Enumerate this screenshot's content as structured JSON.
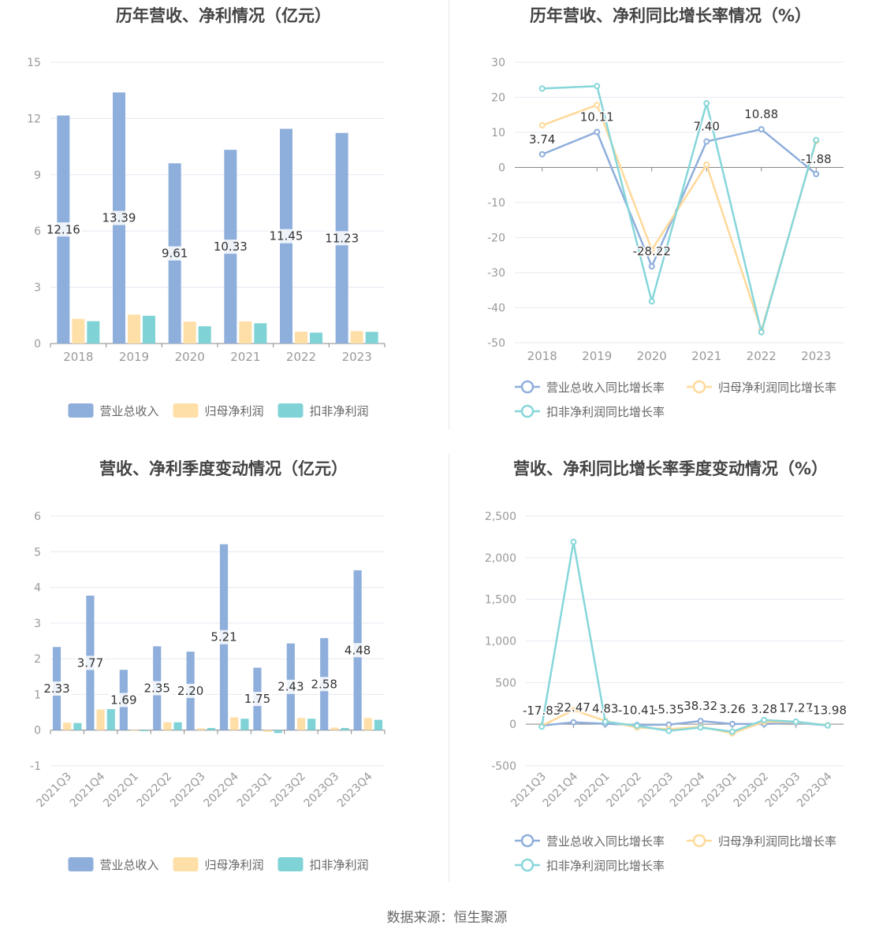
{
  "source": "数据来源：恒生聚源",
  "colors": {
    "revenue": "#8eaedb",
    "net_profit": "#ffdfa8",
    "deducted_profit": "#7fd3d6",
    "revenue_line": "#8eaedb",
    "net_line": "#ffd99a",
    "deducted_line": "#86d6da",
    "axis_text": "#999999",
    "grid": "#e6e9f2"
  },
  "chart_data": [
    {
      "id": "annual_bar",
      "type": "bar",
      "title": "历年营收、净利情况（亿元）",
      "categories": [
        "2018",
        "2019",
        "2020",
        "2021",
        "2022",
        "2023"
      ],
      "ylim": [
        0,
        15
      ],
      "yticks": [
        0,
        3,
        6,
        9,
        12,
        15
      ],
      "ytick_labels": [
        "0",
        "3",
        "6",
        "9",
        "12",
        "15"
      ],
      "series": [
        {
          "name": "营业总收入",
          "values": [
            12.16,
            13.39,
            9.61,
            10.33,
            11.45,
            11.23
          ],
          "labels": [
            "12.16",
            "13.39",
            "9.61",
            "10.33",
            "11.45",
            "11.23"
          ]
        },
        {
          "name": "归母净利润",
          "values": [
            1.32,
            1.54,
            1.17,
            1.18,
            0.63,
            0.66
          ]
        },
        {
          "name": "扣非净利润",
          "values": [
            1.19,
            1.48,
            0.92,
            1.08,
            0.58,
            0.62
          ]
        }
      ],
      "grid": true,
      "legend": "bottom"
    },
    {
      "id": "annual_growth",
      "type": "line",
      "title": "历年营收、净利同比增长率情况（%）",
      "categories": [
        "2018",
        "2019",
        "2020",
        "2021",
        "2022",
        "2023"
      ],
      "ylim": [
        -50,
        30
      ],
      "yticks": [
        -50,
        -40,
        -30,
        -20,
        -10,
        0,
        10,
        20,
        30
      ],
      "ytick_labels": [
        "-50",
        "-40",
        "-30",
        "-20",
        "-10",
        "0",
        "10",
        "20",
        "30"
      ],
      "series": [
        {
          "name": "营业总收入同比增长率",
          "values": [
            3.74,
            10.11,
            -28.22,
            7.4,
            10.88,
            -1.88
          ],
          "labels": [
            "3.74",
            "10.11",
            "-28.22",
            "7.40",
            "10.88",
            "-1.88"
          ]
        },
        {
          "name": "归母净利润同比增长率",
          "values": [
            12.0,
            17.8,
            -23.5,
            0.8,
            -46.5,
            7.5
          ]
        },
        {
          "name": "扣非净利润同比增长率",
          "values": [
            22.5,
            23.2,
            -38.2,
            18.3,
            -47.0,
            7.8
          ]
        }
      ],
      "grid": true,
      "legend": "bottom"
    },
    {
      "id": "quarterly_bar",
      "type": "bar",
      "title": "营收、净利季度变动情况（亿元）",
      "categories": [
        "2021Q3",
        "2021Q4",
        "2022Q1",
        "2022Q2",
        "2022Q3",
        "2022Q4",
        "2023Q1",
        "2023Q2",
        "2023Q3",
        "2023Q4"
      ],
      "ylim": [
        -1,
        6
      ],
      "yticks": [
        -1,
        0,
        1,
        2,
        3,
        4,
        5,
        6
      ],
      "ytick_labels": [
        "-1",
        "0",
        "1",
        "2",
        "3",
        "4",
        "5",
        "6"
      ],
      "series": [
        {
          "name": "营业总收入",
          "values": [
            2.33,
            3.77,
            1.69,
            2.35,
            2.2,
            5.21,
            1.75,
            2.43,
            2.58,
            4.48
          ],
          "labels": [
            "2.33",
            "3.77",
            "1.69",
            "2.35",
            "2.20",
            "5.21",
            "1.75",
            "2.43",
            "2.58",
            "4.48"
          ]
        },
        {
          "name": "归母净利润",
          "values": [
            0.21,
            0.58,
            -0.02,
            0.22,
            0.05,
            0.36,
            -0.05,
            0.34,
            0.07,
            0.34
          ]
        },
        {
          "name": "扣非净利润",
          "values": [
            0.2,
            0.59,
            -0.03,
            0.22,
            0.06,
            0.32,
            -0.08,
            0.32,
            0.06,
            0.29
          ]
        }
      ],
      "grid": true,
      "legend": "bottom"
    },
    {
      "id": "quarterly_growth",
      "type": "line",
      "title": "营收、净利同比增长率季度变动情况（%）",
      "categories": [
        "2021Q3",
        "2021Q4",
        "2022Q1",
        "2022Q2",
        "2022Q3",
        "2022Q4",
        "2023Q1",
        "2023Q2",
        "2023Q3",
        "2023Q4"
      ],
      "ylim": [
        -500,
        2500
      ],
      "yticks": [
        -500,
        0,
        500,
        1000,
        1500,
        2000,
        2500
      ],
      "ytick_labels": [
        "-500",
        "0",
        "500",
        "1,000",
        "1,500",
        "2,000",
        "2,500"
      ],
      "series": [
        {
          "name": "营业总收入同比增长率",
          "values": [
            -17.83,
            22.47,
            4.83,
            -10.41,
            -5.35,
            38.32,
            3.26,
            3.28,
            17.27,
            -13.98
          ],
          "labels": [
            "-17.83",
            "22.47",
            "4.83",
            "-10.41",
            "-5.35",
            "38.32",
            "3.26",
            "3.28",
            "17.27",
            "-13.98"
          ]
        },
        {
          "name": "归母净利润同比增长率",
          "values": [
            -20,
            170,
            40,
            -40,
            -60,
            -30,
            -110,
            30,
            25,
            -10
          ]
        },
        {
          "name": "扣非净利润同比增长率",
          "values": [
            -30,
            2190,
            30,
            -20,
            -80,
            -40,
            -90,
            50,
            30,
            -15
          ]
        }
      ],
      "grid": true,
      "legend": "bottom"
    }
  ]
}
